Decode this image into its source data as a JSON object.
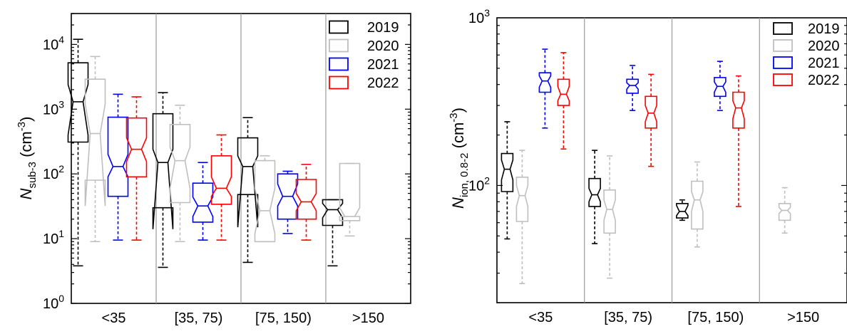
{
  "chart_data": [
    {
      "type": "boxplot",
      "ylabel": {
        "main": "N",
        "sub": "sub-3",
        "unit_pre": " (cm",
        "unit_sup": "-3",
        "unit_post": ")"
      },
      "yscale": "log",
      "ylim": [
        1,
        30000
      ],
      "yticks": [
        {
          "value": 1,
          "base": "10",
          "exp": "0"
        },
        {
          "value": 10,
          "base": "10",
          "exp": "1"
        },
        {
          "value": 100,
          "base": "10",
          "exp": "2"
        },
        {
          "value": 1000,
          "base": "10",
          "exp": "3"
        },
        {
          "value": 10000,
          "base": "10",
          "exp": "4"
        }
      ],
      "categories": [
        "<35",
        "[35, 75)",
        "[75, 150)",
        ">150"
      ],
      "legend": {
        "position": "top-right",
        "entries": [
          "2019",
          "2020",
          "2021",
          "2022"
        ]
      },
      "series": [
        {
          "name": "2019",
          "color": "#000000",
          "boxes": [
            {
              "whislo": 3.8,
              "q1": 310,
              "notchlo": 400,
              "med": 1300,
              "notchhi": 2400,
              "q3": 5200,
              "whishi": 12000
            },
            {
              "whislo": 3.6,
              "q1": 30,
              "notchlo": 14,
              "med": 150,
              "notchhi": 240,
              "q3": 850,
              "whishi": 1800
            },
            {
              "whislo": 4.3,
              "q1": 48,
              "notchlo": 15,
              "med": 130,
              "notchhi": 190,
              "q3": 360,
              "whishi": 740
            },
            {
              "whislo": 3.8,
              "q1": 16,
              "notchlo": 21,
              "med": 28,
              "notchhi": 35,
              "q3": 40,
              "whishi": 40
            }
          ]
        },
        {
          "name": "2020",
          "color": "#bfbfbf",
          "boxes": [
            {
              "whislo": 9,
              "q1": 80,
              "notchlo": 32,
              "med": 420,
              "notchhi": 1200,
              "q3": 2900,
              "whishi": 6500
            },
            {
              "whislo": 9,
              "q1": 36,
              "notchlo": 60,
              "med": 160,
              "notchhi": 260,
              "q3": 580,
              "whishi": 1150
            },
            {
              "whislo": 9,
              "q1": 9,
              "notchlo": 12,
              "med": 27,
              "notchhi": 60,
              "q3": 160,
              "whishi": 190
            },
            {
              "whislo": 11,
              "q1": 19,
              "notchlo": 22,
              "med": 22,
              "notchhi": 30,
              "q3": 145,
              "whishi": 145
            }
          ]
        },
        {
          "name": "2021",
          "color": "#0000ff",
          "boxes": [
            {
              "whislo": 9.5,
              "q1": 45,
              "notchlo": 90,
              "med": 130,
              "notchhi": 200,
              "q3": 750,
              "whishi": 1700
            },
            {
              "whislo": 9.5,
              "q1": 18,
              "notchlo": 22,
              "med": 32,
              "notchhi": 44,
              "q3": 72,
              "whishi": 150
            },
            {
              "whislo": 12,
              "q1": 20,
              "notchlo": 32,
              "med": 45,
              "notchhi": 70,
              "q3": 100,
              "whishi": 110
            }
          ]
        },
        {
          "name": "2022",
          "color": "#ff0000",
          "boxes": [
            {
              "whislo": 9.5,
              "q1": 90,
              "notchlo": 155,
              "med": 240,
              "notchhi": 360,
              "q3": 730,
              "whishi": 1550
            },
            {
              "whislo": 9.5,
              "q1": 34,
              "notchlo": 45,
              "med": 60,
              "notchhi": 90,
              "q3": 190,
              "whishi": 400
            },
            {
              "whislo": 9.5,
              "q1": 20,
              "notchlo": 27,
              "med": 37,
              "notchhi": 50,
              "q3": 82,
              "whishi": 140
            }
          ]
        }
      ]
    },
    {
      "type": "boxplot",
      "ylabel": {
        "main": "N",
        "sub": "ion, 0.8-2",
        "unit_pre": " (cm",
        "unit_sup": "-3",
        "unit_post": ")"
      },
      "yscale": "log",
      "ylim": [
        20,
        1000
      ],
      "yticks": [
        {
          "value": 100,
          "base": "10",
          "exp": "2"
        },
        {
          "value": 1000,
          "base": "10",
          "exp": "3"
        }
      ],
      "categories": [
        "<35",
        "[35, 75)",
        "[75, 150)",
        ">150"
      ],
      "legend": {
        "position": "top-right",
        "entries": [
          "2019",
          "2020",
          "2021",
          "2022"
        ]
      },
      "series": [
        {
          "name": "2019",
          "color": "#000000",
          "boxes": [
            {
              "whislo": 48,
              "q1": 92,
              "notchlo": 108,
              "med": 125,
              "notchhi": 142,
              "q3": 155,
              "whishi": 240
            },
            {
              "whislo": 45,
              "q1": 75,
              "notchlo": 80,
              "med": 88,
              "notchhi": 96,
              "q3": 110,
              "whishi": 162
            },
            {
              "whislo": 62,
              "q1": 64,
              "notchlo": 66,
              "med": 70,
              "notchhi": 76,
              "q3": 78,
              "whishi": 82
            }
          ]
        },
        {
          "name": "2020",
          "color": "#bfbfbf",
          "boxes": [
            {
              "whislo": 26,
              "q1": 61,
              "notchlo": 75,
              "med": 87,
              "notchhi": 100,
              "q3": 112,
              "whishi": 162
            },
            {
              "whislo": 28,
              "q1": 52,
              "notchlo": 62,
              "med": 72,
              "notchhi": 82,
              "q3": 94,
              "whishi": 150
            },
            {
              "whislo": 43,
              "q1": 55,
              "notchlo": 70,
              "med": 82,
              "notchhi": 92,
              "q3": 106,
              "whishi": 138
            },
            {
              "whislo": 52,
              "q1": 62,
              "notchlo": 68,
              "med": 71,
              "notchhi": 74,
              "q3": 78,
              "whishi": 97
            }
          ]
        },
        {
          "name": "2021",
          "color": "#0000ff",
          "boxes": [
            {
              "whislo": 220,
              "q1": 360,
              "notchlo": 385,
              "med": 420,
              "notchhi": 450,
              "q3": 470,
              "whishi": 650
            },
            {
              "whislo": 280,
              "q1": 355,
              "notchlo": 375,
              "med": 395,
              "notchhi": 410,
              "q3": 430,
              "whishi": 520
            },
            {
              "whislo": 280,
              "q1": 340,
              "notchlo": 360,
              "med": 390,
              "notchhi": 415,
              "q3": 440,
              "whishi": 550
            }
          ]
        },
        {
          "name": "2022",
          "color": "#ff0000",
          "boxes": [
            {
              "whislo": 165,
              "q1": 300,
              "notchlo": 320,
              "med": 350,
              "notchhi": 390,
              "q3": 430,
              "whishi": 620
            },
            {
              "whislo": 130,
              "q1": 220,
              "notchlo": 240,
              "med": 270,
              "notchhi": 300,
              "q3": 340,
              "whishi": 460
            },
            {
              "whislo": 75,
              "q1": 220,
              "notchlo": 250,
              "med": 290,
              "notchhi": 320,
              "q3": 360,
              "whishi": 450
            }
          ]
        }
      ]
    }
  ]
}
